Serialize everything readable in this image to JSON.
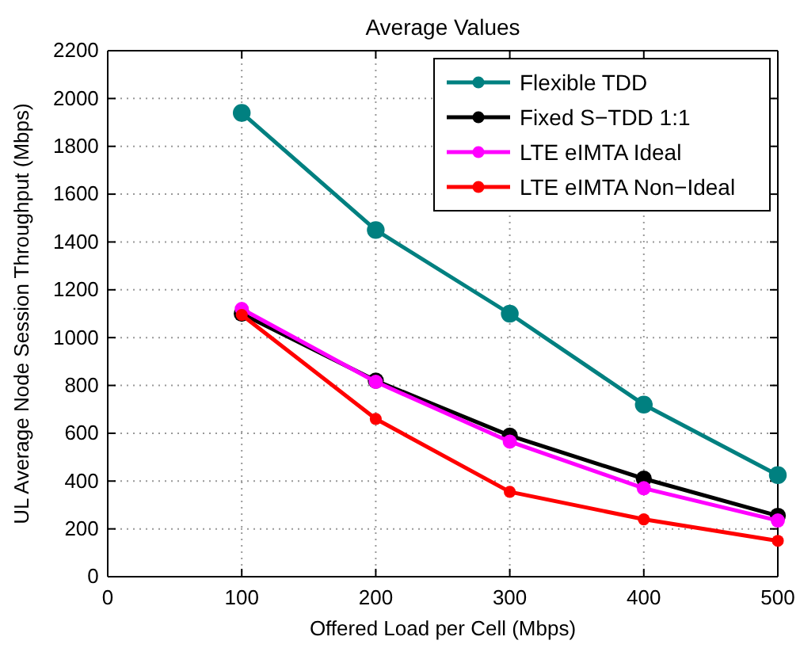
{
  "chart_data": {
    "type": "line",
    "title": "Average Values",
    "xlabel": "Offered Load per Cell (Mbps)",
    "ylabel": "UL Average Node Session Throughput (Mbps)",
    "x": [
      100,
      200,
      300,
      400,
      500
    ],
    "series": [
      {
        "name": "Flexible TDD",
        "color": "#008080",
        "values": [
          1940,
          1450,
          1100,
          720,
          425
        ]
      },
      {
        "name": "Fixed S−TDD 1:1",
        "color": "#000000",
        "values": [
          1100,
          820,
          590,
          410,
          255
        ]
      },
      {
        "name": "LTE eIMTA Ideal",
        "color": "#ff00ff",
        "values": [
          1120,
          815,
          565,
          370,
          235
        ]
      },
      {
        "name": "LTE eIMTA Non−Ideal",
        "color": "#ff0000",
        "values": [
          1095,
          660,
          355,
          240,
          150
        ]
      }
    ],
    "xlim": [
      0,
      500
    ],
    "xticks": [
      0,
      100,
      200,
      300,
      400,
      500
    ],
    "ylim": [
      0,
      2200
    ],
    "yticks": [
      0,
      200,
      400,
      600,
      800,
      1000,
      1200,
      1400,
      1600,
      1800,
      2000,
      2200
    ],
    "grid": true,
    "legend": "top right",
    "marker": "circle",
    "line_style": "solid"
  }
}
